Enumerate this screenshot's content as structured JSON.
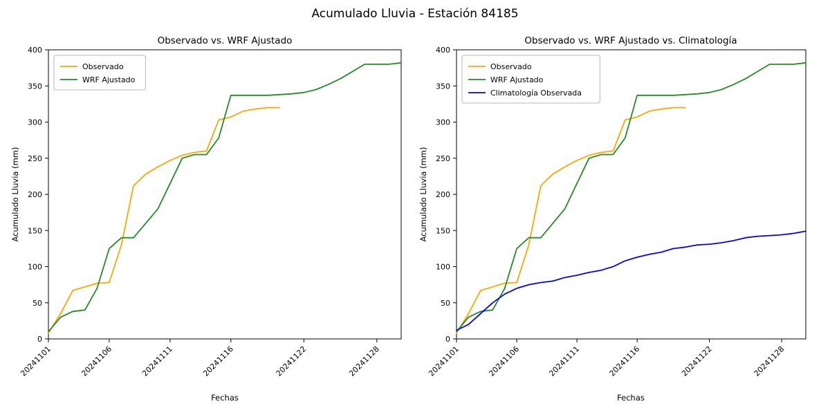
{
  "figure": {
    "suptitle": "Acumulado Lluvia - Estación 84185"
  },
  "chart_data": [
    {
      "type": "line",
      "title": "Observado vs. WRF Ajustado",
      "xlabel": "Fechas",
      "ylabel": "Acumulado Lluvia (mm)",
      "ylim": [
        0,
        400
      ],
      "yticks": [
        0,
        50,
        100,
        150,
        200,
        250,
        300,
        350,
        400
      ],
      "grid": false,
      "legend_position": "upper left",
      "x": [
        "20241101",
        "20241102",
        "20241103",
        "20241104",
        "20241105",
        "20241106",
        "20241107",
        "20241108",
        "20241109",
        "20241110",
        "20241111",
        "20241112",
        "20241113",
        "20241114",
        "20241115",
        "20241116",
        "20241117",
        "20241118",
        "20241119",
        "20241120",
        "20241121",
        "20241122",
        "20241123",
        "20241124",
        "20241125",
        "20241126",
        "20241127",
        "20241128",
        "20241129",
        "20241130"
      ],
      "xtick_indices": [
        0,
        5,
        10,
        15,
        21,
        27
      ],
      "xtick_labels": [
        "20241101",
        "20241106",
        "20241111",
        "20241116",
        "20241122",
        "20241128"
      ],
      "series": [
        {
          "name": "Observado",
          "color": "#FFA500",
          "values": [
            8,
            35,
            67,
            72,
            77,
            78,
            130,
            212,
            228,
            238,
            247,
            254,
            258,
            260,
            303,
            307,
            315,
            318,
            320,
            320,
            null,
            null,
            null,
            null,
            null,
            null,
            null,
            null,
            null,
            null
          ]
        },
        {
          "name": "WRF Ajustado",
          "color": "#228B22",
          "values": [
            10,
            30,
            38,
            40,
            70,
            125,
            140,
            140,
            160,
            180,
            215,
            250,
            255,
            255,
            278,
            337,
            337,
            337,
            337,
            338,
            339,
            341,
            345,
            352,
            360,
            370,
            380,
            380,
            380,
            382
          ]
        }
      ]
    },
    {
      "type": "line",
      "title": "Observado vs. WRF Ajustado vs. Climatología",
      "xlabel": "Fechas",
      "ylabel": "Acumulado Lluvia (mm)",
      "ylim": [
        0,
        400
      ],
      "yticks": [
        0,
        50,
        100,
        150,
        200,
        250,
        300,
        350,
        400
      ],
      "grid": false,
      "legend_position": "upper left",
      "x": [
        "20241101",
        "20241102",
        "20241103",
        "20241104",
        "20241105",
        "20241106",
        "20241107",
        "20241108",
        "20241109",
        "20241110",
        "20241111",
        "20241112",
        "20241113",
        "20241114",
        "20241115",
        "20241116",
        "20241117",
        "20241118",
        "20241119",
        "20241120",
        "20241121",
        "20241122",
        "20241123",
        "20241124",
        "20241125",
        "20241126",
        "20241127",
        "20241128",
        "20241129",
        "20241130"
      ],
      "xtick_indices": [
        0,
        5,
        10,
        15,
        21,
        27
      ],
      "xtick_labels": [
        "20241101",
        "20241106",
        "20241111",
        "20241116",
        "20241122",
        "20241128"
      ],
      "series": [
        {
          "name": "Observado",
          "color": "#FFA500",
          "values": [
            8,
            35,
            67,
            72,
            77,
            78,
            130,
            212,
            228,
            238,
            247,
            254,
            258,
            260,
            303,
            307,
            315,
            318,
            320,
            320,
            null,
            null,
            null,
            null,
            null,
            null,
            null,
            null,
            null,
            null
          ]
        },
        {
          "name": "WRF Ajustado",
          "color": "#228B22",
          "values": [
            10,
            30,
            38,
            40,
            70,
            125,
            140,
            140,
            160,
            180,
            215,
            250,
            255,
            255,
            278,
            337,
            337,
            337,
            337,
            338,
            339,
            341,
            345,
            352,
            360,
            370,
            380,
            380,
            380,
            382
          ]
        },
        {
          "name": "Climatología Observada",
          "color": "#0000FF",
          "values": [
            12,
            20,
            35,
            50,
            62,
            70,
            75,
            78,
            80,
            85,
            88,
            92,
            95,
            100,
            108,
            113,
            117,
            120,
            125,
            127,
            130,
            131,
            133,
            136,
            140,
            142,
            143,
            144,
            146,
            149
          ]
        }
      ]
    }
  ]
}
